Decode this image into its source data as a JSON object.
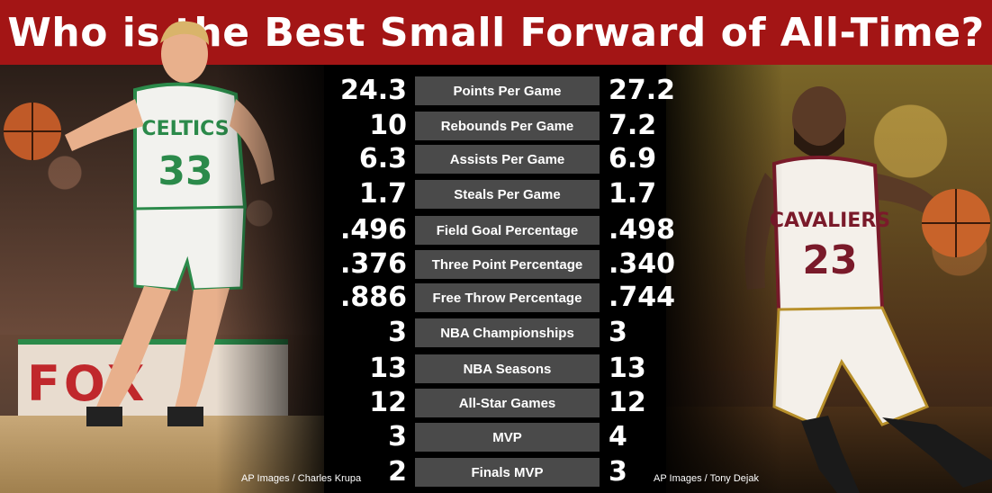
{
  "title": "Who is the Best Small Forward of All-Time?",
  "players": {
    "left": {
      "jersey_team": "CELTICS",
      "jersey_number": "33",
      "banner_text": "FOX"
    },
    "right": {
      "jersey_team": "CAVALIERS",
      "jersey_number": "23"
    }
  },
  "stats": [
    {
      "label": "Points Per Game",
      "left": "24.3",
      "right": "27.2"
    },
    {
      "label": "Rebounds Per Game",
      "left": "10",
      "right": "7.2"
    },
    {
      "label": "Assists Per Game",
      "left": "6.3",
      "right": "6.9"
    },
    {
      "label": "Steals Per Game",
      "left": "1.7",
      "right": "1.7"
    },
    {
      "label": "Field Goal Percentage",
      "left": ".496",
      "right": ".498"
    },
    {
      "label": "Three Point Percentage",
      "left": ".376",
      "right": ".340"
    },
    {
      "label": "Free Throw Percentage",
      "left": ".886",
      "right": ".744"
    },
    {
      "label": "NBA Championships",
      "left": "3",
      "right": "3"
    },
    {
      "label": "NBA Seasons",
      "left": "13",
      "right": "13"
    },
    {
      "label": "All-Star Games",
      "left": "12",
      "right": "12"
    },
    {
      "label": "MVP",
      "left": "3",
      "right": "4"
    },
    {
      "label": "Finals MVP",
      "left": "2",
      "right": "3"
    }
  ],
  "credits": {
    "left": "AP Images / Charles Krupa",
    "right": "AP Images / Tony Dejak"
  },
  "colors": {
    "title_bar": "#a31515",
    "label_bg": "#4a4a4a",
    "celtics_green": "#2b8a4a",
    "cavs_wine": "#7a1a2a"
  }
}
